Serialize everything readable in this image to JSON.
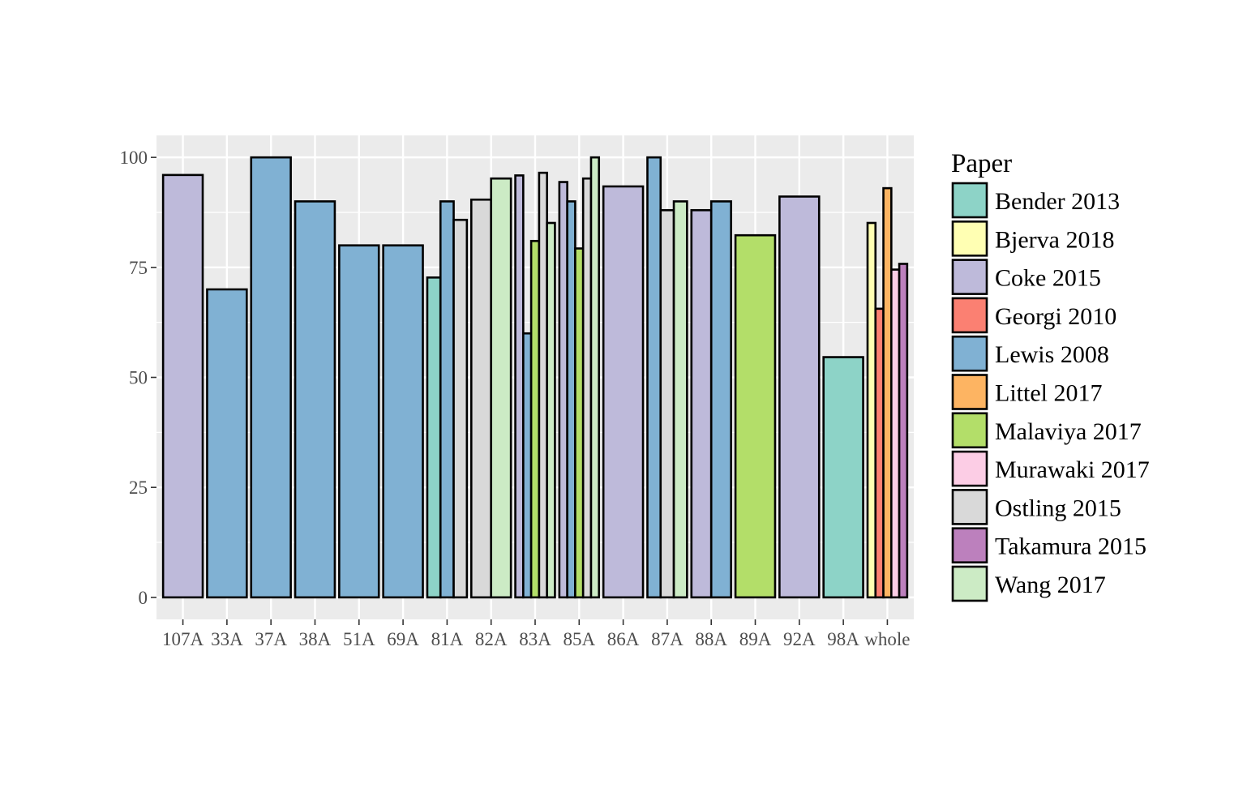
{
  "chart_data": {
    "type": "bar",
    "position": "dodge",
    "title": "",
    "xlabel": "",
    "ylabel": "",
    "ylim": [
      -5,
      105
    ],
    "yticks": [
      0,
      25,
      50,
      75,
      100
    ],
    "grid": true,
    "legend": {
      "title": "Paper",
      "placement": "right",
      "entries": [
        {
          "name": "Bender 2013",
          "color": "#8DD3C7"
        },
        {
          "name": "Bjerva 2018",
          "color": "#FFFFB3"
        },
        {
          "name": "Coke 2015",
          "color": "#BEBADA"
        },
        {
          "name": "Georgi 2010",
          "color": "#FB8072"
        },
        {
          "name": "Lewis 2008",
          "color": "#80B1D3"
        },
        {
          "name": "Littel 2017",
          "color": "#FDB462"
        },
        {
          "name": "Malaviya 2017",
          "color": "#B3DE69"
        },
        {
          "name": "Murawaki 2017",
          "color": "#FCCDE5"
        },
        {
          "name": "Ostling 2015",
          "color": "#D9D9D9"
        },
        {
          "name": "Takamura 2015",
          "color": "#BC80BD"
        },
        {
          "name": "Wang 2017",
          "color": "#CCEBC5"
        }
      ]
    },
    "categories": [
      "107A",
      "33A",
      "37A",
      "38A",
      "51A",
      "69A",
      "81A",
      "82A",
      "83A",
      "85A",
      "86A",
      "87A",
      "88A",
      "89A",
      "92A",
      "98A",
      "whole"
    ],
    "bars": [
      {
        "category": "107A",
        "paper": "Coke 2015",
        "value": 96
      },
      {
        "category": "33A",
        "paper": "Lewis 2008",
        "value": 70
      },
      {
        "category": "37A",
        "paper": "Lewis 2008",
        "value": 100
      },
      {
        "category": "38A",
        "paper": "Lewis 2008",
        "value": 90
      },
      {
        "category": "51A",
        "paper": "Lewis 2008",
        "value": 80
      },
      {
        "category": "69A",
        "paper": "Lewis 2008",
        "value": 80
      },
      {
        "category": "81A",
        "paper": "Bender 2013",
        "value": 72.7
      },
      {
        "category": "81A",
        "paper": "Lewis 2008",
        "value": 90
      },
      {
        "category": "81A",
        "paper": "Ostling 2015",
        "value": 85.8
      },
      {
        "category": "82A",
        "paper": "Ostling 2015",
        "value": 90.4
      },
      {
        "category": "82A",
        "paper": "Wang 2017",
        "value": 95.2
      },
      {
        "category": "83A",
        "paper": "Coke 2015",
        "value": 95.9
      },
      {
        "category": "83A",
        "paper": "Lewis 2008",
        "value": 60
      },
      {
        "category": "83A",
        "paper": "Malaviya 2017",
        "value": 81
      },
      {
        "category": "83A",
        "paper": "Ostling 2015",
        "value": 96.5
      },
      {
        "category": "83A",
        "paper": "Wang 2017",
        "value": 85.1
      },
      {
        "category": "85A",
        "paper": "Coke 2015",
        "value": 94.4
      },
      {
        "category": "85A",
        "paper": "Lewis 2008",
        "value": 90
      },
      {
        "category": "85A",
        "paper": "Malaviya 2017",
        "value": 79.3
      },
      {
        "category": "85A",
        "paper": "Ostling 2015",
        "value": 95.2
      },
      {
        "category": "85A",
        "paper": "Wang 2017",
        "value": 100
      },
      {
        "category": "86A",
        "paper": "Coke 2015",
        "value": 93.4
      },
      {
        "category": "87A",
        "paper": "Lewis 2008",
        "value": 100
      },
      {
        "category": "87A",
        "paper": "Ostling 2015",
        "value": 88
      },
      {
        "category": "87A",
        "paper": "Wang 2017",
        "value": 90
      },
      {
        "category": "88A",
        "paper": "Coke 2015",
        "value": 88
      },
      {
        "category": "88A",
        "paper": "Lewis 2008",
        "value": 90
      },
      {
        "category": "89A",
        "paper": "Malaviya 2017",
        "value": 82.3
      },
      {
        "category": "92A",
        "paper": "Coke 2015",
        "value": 91.1
      },
      {
        "category": "98A",
        "paper": "Bender 2013",
        "value": 54.6
      },
      {
        "category": "whole",
        "paper": "Bjerva 2018",
        "value": 85.1
      },
      {
        "category": "whole",
        "paper": "Georgi 2010",
        "value": 65.6
      },
      {
        "category": "whole",
        "paper": "Littel 2017",
        "value": 93
      },
      {
        "category": "whole",
        "paper": "Murawaki 2017",
        "value": 74.5
      },
      {
        "category": "whole",
        "paper": "Takamura 2015",
        "value": 75.8
      }
    ]
  }
}
